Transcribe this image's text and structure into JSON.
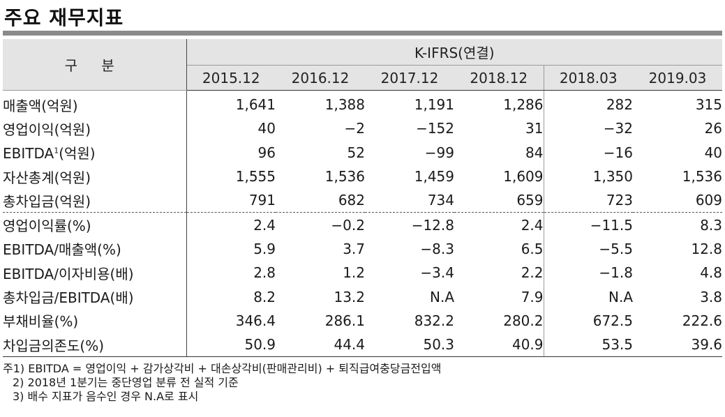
{
  "title": "주요 재무지표",
  "table": {
    "row_header": "구 분",
    "group_header": "K-IFRS(연결)",
    "periods": [
      "2015.12",
      "2016.12",
      "2017.12",
      "2018.12",
      "2018.03",
      "2019.03"
    ],
    "rows": [
      {
        "label": "매출액(억원)",
        "values": [
          "1,641",
          "1,388",
          "1,191",
          "1,286",
          "282",
          "315"
        ]
      },
      {
        "label": "영업이익(억원)",
        "values": [
          "40",
          "−2",
          "−152",
          "31",
          "−32",
          "26"
        ]
      },
      {
        "label_main": "EBITDA",
        "label_sup": "1",
        "label_tail": "(억원)",
        "values": [
          "96",
          "52",
          "−99",
          "84",
          "−16",
          "40"
        ]
      },
      {
        "label": "자산총계(억원)",
        "values": [
          "1,555",
          "1,536",
          "1,459",
          "1,609",
          "1,350",
          "1,536"
        ]
      },
      {
        "label": "총차입금(억원)",
        "values": [
          "791",
          "682",
          "734",
          "659",
          "723",
          "609"
        ]
      },
      {
        "label": "영업이익률(%)",
        "values": [
          "2.4",
          "−0.2",
          "−12.8",
          "2.4",
          "−11.5",
          "8.3"
        ]
      },
      {
        "label": "EBITDA/매출액(%)",
        "values": [
          "5.9",
          "3.7",
          "−8.3",
          "6.5",
          "−5.5",
          "12.8"
        ]
      },
      {
        "label": "EBITDA/이자비용(배)",
        "values": [
          "2.8",
          "1.2",
          "−3.4",
          "2.2",
          "−1.8",
          "4.8"
        ]
      },
      {
        "label": "총차입금/EBITDA(배)",
        "values": [
          "8.2",
          "13.2",
          "N.A",
          "7.9",
          "N.A",
          "3.8"
        ]
      },
      {
        "label": "부채비율(%)",
        "values": [
          "346.4",
          "286.1",
          "832.2",
          "280.2",
          "672.5",
          "222.6"
        ]
      },
      {
        "label": "차입금의존도(%)",
        "values": [
          "50.9",
          "44.4",
          "50.3",
          "40.9",
          "53.5",
          "39.6"
        ]
      }
    ]
  },
  "notes": [
    "주1) EBITDA = 영업이익 + 감가상각비 + 대손상각비(판매관리비) + 퇴직급여충당금전입액",
    "2) 2018년 1분기는 중단영업 분류 전 실적 기준",
    "3) 배수 지표가 음수인 경우 N.A로 표시"
  ]
}
